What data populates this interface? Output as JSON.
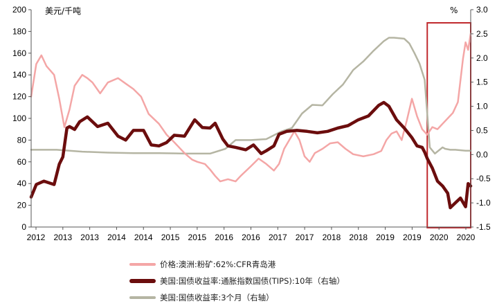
{
  "chart_data": {
    "type": "line",
    "left_axis": {
      "unit": "美元/千吨",
      "range": [
        0,
        200
      ],
      "ticks": [
        "0",
        "20",
        "40",
        "60",
        "80",
        "100",
        "120",
        "140",
        "160",
        "180",
        "200"
      ]
    },
    "right_axis": {
      "unit": "%",
      "range": [
        -1.5,
        3.0
      ],
      "ticks": [
        "-1.5",
        "-1.0",
        "-0.5",
        "0.0",
        "0.5",
        "1.0",
        "1.5",
        "2.0",
        "2.5",
        "3.0"
      ]
    },
    "x_axis": {
      "range": [
        2012.0,
        2020.6
      ],
      "ticks": [
        "2012",
        "2013",
        "2013",
        "2014",
        "2014",
        "2015",
        "2015",
        "2016",
        "2016",
        "2017",
        "2017",
        "2018",
        "2018",
        "2019",
        "2019",
        "2020",
        "2020"
      ]
    },
    "grid": false,
    "legend_placement": "bottom",
    "highlight_box": {
      "x_range": [
        2019.75,
        2020.6
      ],
      "color": "#c0282d"
    },
    "series": [
      {
        "name": "价格:澳洲:粉矿:62%:CFR青岛港",
        "axis": "left",
        "color": "#f4a6a6",
        "width": 2.5,
        "x": [
          2012.0,
          2012.1,
          2012.2,
          2012.3,
          2012.45,
          2012.55,
          2012.65,
          2012.75,
          2012.85,
          2013.0,
          2013.1,
          2013.2,
          2013.35,
          2013.5,
          2013.7,
          2013.85,
          2014.0,
          2014.15,
          2014.3,
          2014.5,
          2014.65,
          2014.8,
          2015.0,
          2015.15,
          2015.25,
          2015.4,
          2015.5,
          2015.6,
          2015.7,
          2015.85,
          2016.0,
          2016.1,
          2016.3,
          2016.45,
          2016.6,
          2016.75,
          2016.85,
          2016.95,
          2017.05,
          2017.15,
          2017.25,
          2017.35,
          2017.45,
          2017.55,
          2017.7,
          2017.85,
          2018.0,
          2018.15,
          2018.3,
          2018.5,
          2018.7,
          2018.85,
          2018.95,
          2019.05,
          2019.15,
          2019.25,
          2019.35,
          2019.45,
          2019.55,
          2019.65,
          2019.75,
          2019.85,
          2019.95,
          2020.05,
          2020.15,
          2020.25,
          2020.35,
          2020.45,
          2020.5,
          2020.55,
          2020.6
        ],
        "y": [
          120,
          150,
          158,
          148,
          140,
          118,
          92,
          108,
          130,
          140,
          137,
          133,
          123,
          133,
          137,
          132,
          127,
          120,
          104,
          95,
          85,
          78,
          68,
          62,
          60,
          58,
          53,
          47,
          42,
          44,
          42,
          47,
          56,
          63,
          58,
          52,
          58,
          72,
          80,
          88,
          80,
          65,
          60,
          68,
          72,
          77,
          78,
          72,
          67,
          65,
          67,
          70,
          80,
          86,
          88,
          80,
          98,
          118,
          102,
          90,
          85,
          92,
          90,
          95,
          100,
          105,
          115,
          155,
          170,
          163,
          178
        ]
      },
      {
        "name": "美国:国债收益率:通胀指数国债(TIPS):10年（右轴）",
        "axis": "right",
        "color": "#6b0d0d",
        "width": 4.5,
        "x": [
          2012.0,
          2012.1,
          2012.25,
          2012.45,
          2012.55,
          2012.62,
          2012.7,
          2012.75,
          2012.85,
          2012.95,
          2013.1,
          2013.3,
          2013.5,
          2013.7,
          2013.85,
          2014.0,
          2014.2,
          2014.35,
          2014.5,
          2014.65,
          2014.8,
          2015.0,
          2015.2,
          2015.35,
          2015.5,
          2015.6,
          2015.75,
          2015.85,
          2016.0,
          2016.2,
          2016.35,
          2016.5,
          2016.6,
          2016.75,
          2016.85,
          2017.0,
          2017.2,
          2017.4,
          2017.6,
          2017.8,
          2018.0,
          2018.2,
          2018.4,
          2018.6,
          2018.8,
          2018.9,
          2019.0,
          2019.15,
          2019.3,
          2019.45,
          2019.55,
          2019.65,
          2019.7,
          2019.75,
          2019.85,
          2019.95,
          2020.05,
          2020.15,
          2020.2,
          2020.3,
          2020.4,
          2020.5,
          2020.55,
          2020.6
        ],
        "y": [
          -0.88,
          -0.62,
          -0.55,
          -0.62,
          -0.2,
          -0.05,
          0.55,
          0.58,
          0.52,
          0.68,
          0.78,
          0.58,
          0.65,
          0.38,
          0.3,
          0.5,
          0.5,
          0.2,
          0.18,
          0.25,
          0.4,
          0.38,
          0.72,
          0.56,
          0.55,
          0.65,
          0.32,
          0.18,
          0.15,
          0.1,
          0.2,
          0.02,
          0.08,
          0.18,
          0.42,
          0.48,
          0.5,
          0.48,
          0.45,
          0.48,
          0.55,
          0.6,
          0.72,
          0.8,
          1.02,
          1.08,
          1.0,
          0.72,
          0.55,
          0.35,
          0.18,
          0.15,
          0.05,
          -0.08,
          -0.28,
          -0.55,
          -0.65,
          -0.8,
          -1.1,
          -1.0,
          -0.9,
          -1.08,
          -0.6,
          -0.65
        ]
      },
      {
        "name": "美国:国债收益率:3个月（右轴）",
        "axis": "right",
        "color": "#b5b5a3",
        "width": 2.5,
        "x": [
          2012.0,
          2012.5,
          2013.0,
          2013.5,
          2014.0,
          2014.5,
          2015.0,
          2015.5,
          2015.8,
          2016.0,
          2016.3,
          2016.6,
          2016.9,
          2017.1,
          2017.3,
          2017.5,
          2017.7,
          2017.9,
          2018.1,
          2018.3,
          2018.5,
          2018.7,
          2018.9,
          2019.0,
          2019.1,
          2019.3,
          2019.4,
          2019.5,
          2019.6,
          2019.7,
          2019.8,
          2019.9,
          2020.05,
          2020.1,
          2020.2,
          2020.3,
          2020.5,
          2020.6
        ],
        "y": [
          0.1,
          0.1,
          0.06,
          0.04,
          0.03,
          0.03,
          0.02,
          0.02,
          0.12,
          0.3,
          0.3,
          0.32,
          0.48,
          0.55,
          0.85,
          1.03,
          1.02,
          1.25,
          1.45,
          1.75,
          1.93,
          2.15,
          2.35,
          2.42,
          2.42,
          2.4,
          2.3,
          2.1,
          1.88,
          1.55,
          0.15,
          0.02,
          0.15,
          0.12,
          0.1,
          0.1,
          0.08,
          0.08
        ]
      }
    ]
  }
}
